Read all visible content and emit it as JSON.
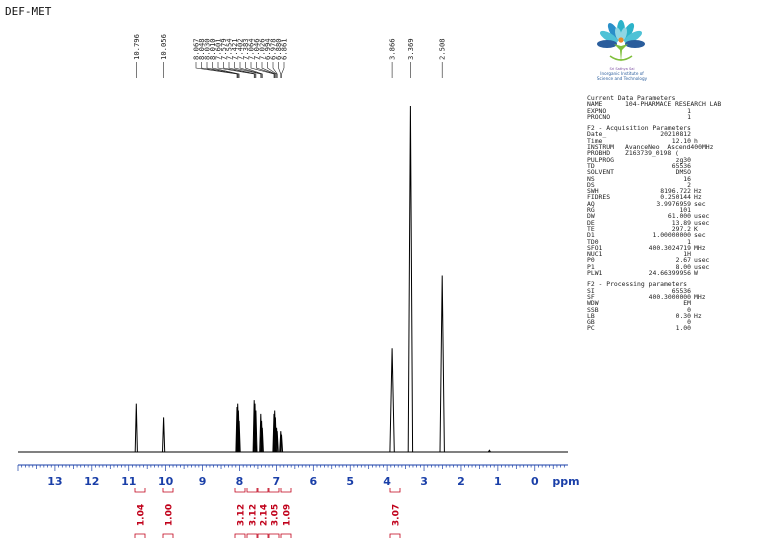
{
  "title": "DEF-MET",
  "logo": {
    "line1": "Sri Sathya Sai",
    "line2": "Inorganic Institute of",
    "line3": "Science and Technology"
  },
  "params": {
    "sections": [
      {
        "header": "Current Data Parameters",
        "rows": [
          {
            "key": "NAME",
            "value": "104-PHARMACE RESEARCH LAB",
            "unit": "",
            "align": "left"
          },
          {
            "key": "EXPNO",
            "value": "1",
            "unit": ""
          },
          {
            "key": "PROCNO",
            "value": "1",
            "unit": ""
          }
        ]
      },
      {
        "header": "F2 - Acquisition Parameters",
        "rows": [
          {
            "key": "Date_",
            "value": "20210812",
            "unit": ""
          },
          {
            "key": "Time",
            "value": "12.10",
            "unit": "h"
          },
          {
            "key": "INSTRUM",
            "value": "AvanceNeo  Ascend400MHz",
            "unit": "",
            "align": "left"
          },
          {
            "key": "PROBHD",
            "value": "Z163739_0198 (",
            "unit": "",
            "align": "left"
          },
          {
            "key": "PULPROG",
            "value": "zg30",
            "unit": ""
          },
          {
            "key": "TD",
            "value": "65536",
            "unit": ""
          },
          {
            "key": "SOLVENT",
            "value": "DMSO",
            "unit": ""
          },
          {
            "key": "NS",
            "value": "16",
            "unit": ""
          },
          {
            "key": "DS",
            "value": "2",
            "unit": ""
          },
          {
            "key": "SWH",
            "value": "8196.722",
            "unit": "Hz"
          },
          {
            "key": "FIDRES",
            "value": "0.250144",
            "unit": "Hz"
          },
          {
            "key": "AQ",
            "value": "3.9976959",
            "unit": "sec"
          },
          {
            "key": "RG",
            "value": "101",
            "unit": ""
          },
          {
            "key": "DW",
            "value": "61.000",
            "unit": "usec"
          },
          {
            "key": "DE",
            "value": "13.89",
            "unit": "usec"
          },
          {
            "key": "TE",
            "value": "297.2",
            "unit": "K"
          },
          {
            "key": "D1",
            "value": "1.00000000",
            "unit": "sec"
          },
          {
            "key": "TD0",
            "value": "1",
            "unit": ""
          },
          {
            "key": "SFO1",
            "value": "400.3024719",
            "unit": "MHz"
          },
          {
            "key": "NUC1",
            "value": "1H",
            "unit": ""
          },
          {
            "key": "P0",
            "value": "2.67",
            "unit": "usec"
          },
          {
            "key": "P1",
            "value": "8.00",
            "unit": "usec"
          },
          {
            "key": "PLW1",
            "value": "24.66399956",
            "unit": "W"
          }
        ]
      },
      {
        "header": "F2 - Processing parameters",
        "rows": [
          {
            "key": "SI",
            "value": "65536",
            "unit": ""
          },
          {
            "key": "SF",
            "value": "400.3000000",
            "unit": "MHz"
          },
          {
            "key": "WDW",
            "value": "EM",
            "unit": ""
          },
          {
            "key": "SSB",
            "value": "0",
            "unit": ""
          },
          {
            "key": "LB",
            "value": "0.30",
            "unit": "Hz"
          },
          {
            "key": "GB",
            "value": "0",
            "unit": ""
          },
          {
            "key": "PC",
            "value": "1.00",
            "unit": ""
          }
        ]
      }
    ]
  },
  "colors": {
    "spectrum": "#000000",
    "integral": "#c0001a",
    "axis": "#1a3fa8",
    "logo_teal": "#2cb3c9",
    "logo_blue": "#2a5d9c",
    "logo_green": "#7fbf3a",
    "logo_purple": "#8b4fa8"
  },
  "chart_data": {
    "type": "line",
    "title": "DEF-MET",
    "xlabel": "ppm",
    "ylabel": "",
    "xlim": [
      14.0,
      -0.9
    ],
    "ylim": [
      0,
      1
    ],
    "x_reversed": true,
    "grid": false,
    "x_ticks": [
      13,
      12,
      11,
      10,
      9,
      8,
      7,
      6,
      5,
      4,
      3,
      2,
      1,
      0
    ],
    "x_tick_labels": [
      "13",
      "12",
      "11",
      "10",
      "9",
      "8",
      "7",
      "6",
      "5",
      "4",
      "3",
      "2",
      "1",
      "0"
    ],
    "peaks": [
      {
        "ppm": 10.796,
        "intensity": 0.14
      },
      {
        "ppm": 10.056,
        "intensity": 0.1
      },
      {
        "ppm": 8.067,
        "intensity": 0.13
      },
      {
        "ppm": 8.048,
        "intensity": 0.14
      },
      {
        "ppm": 8.03,
        "intensity": 0.12
      },
      {
        "ppm": 8.01,
        "intensity": 0.09
      },
      {
        "ppm": 7.601,
        "intensity": 0.15
      },
      {
        "ppm": 7.579,
        "intensity": 0.14
      },
      {
        "ppm": 7.554,
        "intensity": 0.12
      },
      {
        "ppm": 7.421,
        "intensity": 0.11
      },
      {
        "ppm": 7.402,
        "intensity": 0.09
      },
      {
        "ppm": 7.383,
        "intensity": 0.07
      },
      {
        "ppm": 7.064,
        "intensity": 0.11
      },
      {
        "ppm": 7.046,
        "intensity": 0.12
      },
      {
        "ppm": 7.026,
        "intensity": 0.1
      },
      {
        "ppm": 6.994,
        "intensity": 0.07
      },
      {
        "ppm": 6.978,
        "intensity": 0.06
      },
      {
        "ppm": 6.88,
        "intensity": 0.06
      },
      {
        "ppm": 6.861,
        "intensity": 0.05
      },
      {
        "ppm": 3.866,
        "intensity": 0.3
      },
      {
        "ppm": 3.369,
        "intensity": 1.0
      },
      {
        "ppm": 2.508,
        "intensity": 0.51
      },
      {
        "ppm": 1.23,
        "intensity": 0.005
      }
    ],
    "peak_labels": [
      "10.796",
      "10.056",
      "8.067",
      "8.048",
      "8.030",
      "8.010",
      "7.601",
      "7.579",
      "7.554",
      "7.421",
      "7.402",
      "7.383",
      "7.064",
      "7.046",
      "7.026",
      "6.994",
      "6.978",
      "6.880",
      "6.861",
      "3.866",
      "3.369",
      "2.508"
    ],
    "integrals": [
      {
        "label": "1.04",
        "ppm": 10.796
      },
      {
        "label": "1.00",
        "ppm": 10.056
      },
      {
        "label": "3.12",
        "ppm": 8.04
      },
      {
        "label": "3.12",
        "ppm": 7.78
      },
      {
        "label": "2.14",
        "ppm": 7.52
      },
      {
        "label": "3.05",
        "ppm": 7.26
      },
      {
        "label": "1.09",
        "ppm": 6.99
      },
      {
        "label": "3.07",
        "ppm": 3.866
      }
    ]
  }
}
